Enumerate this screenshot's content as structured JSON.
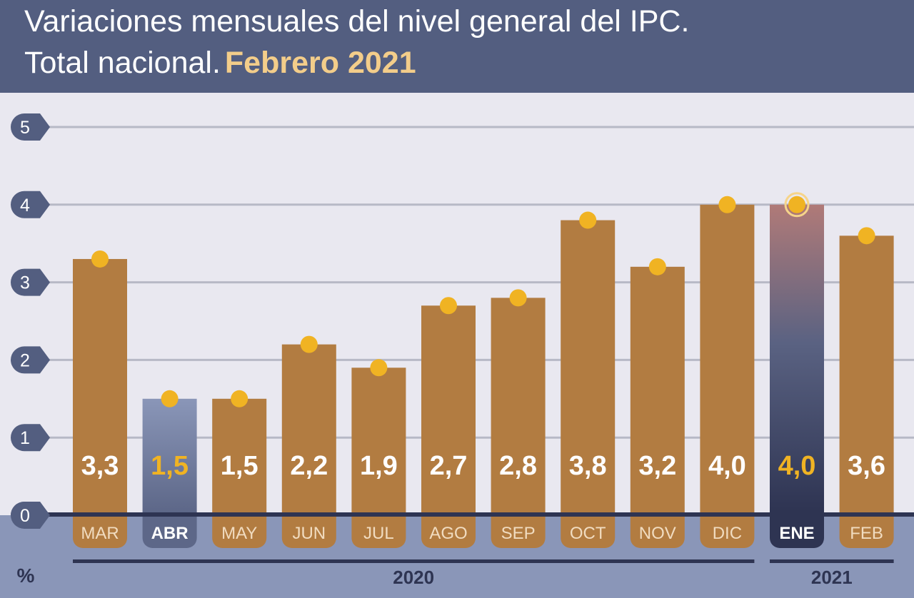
{
  "title": {
    "line1": "Variaciones mensuales del nivel general del IPC.",
    "line2_prefix": "Total nacional.",
    "line2_highlight": "Febrero 2021"
  },
  "chart_data": {
    "type": "bar",
    "categories": [
      "MAR",
      "ABR",
      "MAY",
      "JUN",
      "JUL",
      "AGO",
      "SEP",
      "OCT",
      "NOV",
      "DIC",
      "ENE",
      "FEB"
    ],
    "values": [
      3.3,
      1.5,
      1.5,
      2.2,
      1.9,
      2.7,
      2.8,
      3.8,
      3.2,
      4.0,
      4.0,
      3.6
    ],
    "value_labels": [
      "3,3",
      "1,5",
      "1,5",
      "2,2",
      "1,9",
      "2,7",
      "2,8",
      "3,8",
      "3,2",
      "4,0",
      "4,0",
      "3,6"
    ],
    "highlighted": [
      "ABR",
      "ENE"
    ],
    "ylim": [
      0,
      5
    ],
    "yticks": [
      "0",
      "1",
      "2",
      "3",
      "4",
      "5"
    ],
    "ylabel": "%",
    "year_groups": [
      {
        "label": "2020",
        "first": 0,
        "last": 9
      },
      {
        "label": "2021",
        "first": 10,
        "last": 11
      }
    ],
    "grid": true,
    "colors": {
      "bar": "#b27c41",
      "bar_highlight_abr": "#8a96b8",
      "bar_highlight_ene_top": "#b07a78",
      "bar_highlight_ene_bottom": "#2e3452",
      "marker": "#f0b323",
      "value_label": "#ffffff",
      "value_label_highlight": "#f0b323",
      "axis_tag": "#535e80",
      "header_bg": "#535e80",
      "title_highlight": "#f3cd8a"
    }
  }
}
